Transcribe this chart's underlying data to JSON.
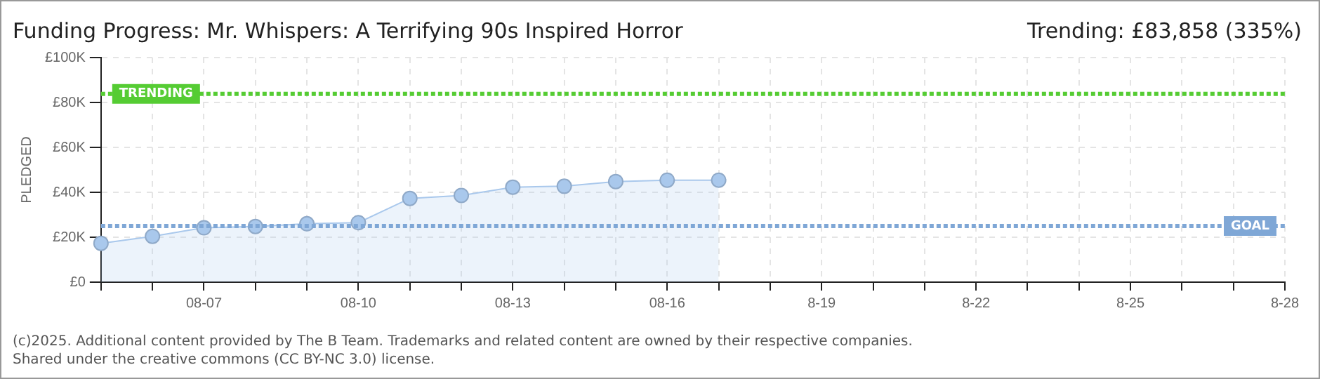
{
  "chart_data": {
    "type": "area",
    "title": "Funding Progress: Mr. Whispers: A Terrifying 90s Inspired Horror",
    "ylabel": "PLEDGED",
    "annotations": [
      "Trending: £83,858 (335%)",
      "(c)2025. Additional content provided by The B Team. Trademarks and related content are owned by their respective companies.",
      "Shared under the creative commons (CC BY-NC 3.0) license."
    ],
    "categories": [
      null,
      null,
      "08-07",
      null,
      null,
      "08-10",
      null,
      null,
      "08-13",
      null,
      null,
      "08-16",
      null,
      null,
      "8-19",
      null,
      null,
      "8-22",
      null,
      null,
      "8-25",
      null,
      null,
      "8-28"
    ],
    "series": [
      {
        "color": "#a9c8ec",
        "values": [
          17300,
          20400,
          24200,
          24800,
          26000,
          26500,
          37300,
          38600,
          42300,
          42700,
          44800,
          45400,
          45400,
          null,
          null,
          null,
          null,
          null,
          null,
          null,
          null,
          null,
          null,
          null
        ]
      }
    ],
    "ylim": [
      0,
      100000
    ],
    "yticks": [
      {
        "value": 0,
        "label": "£0"
      },
      {
        "value": 20000,
        "label": "£20K"
      },
      {
        "value": 40000,
        "label": "£40K"
      },
      {
        "value": 60000,
        "label": "£60K"
      },
      {
        "value": 80000,
        "label": "£80K"
      },
      {
        "value": 100000,
        "label": "£100K"
      }
    ],
    "ref_lines": [
      {
        "axis": "y",
        "value": 83858,
        "label": "TRENDING",
        "color": "#55cc33",
        "line_style": "dotted"
      },
      {
        "axis": "y",
        "value": 25000,
        "label": "GOAL",
        "color": "#7fa7d6",
        "line_style": "dotted"
      }
    ],
    "grid": true,
    "marker": "circle"
  }
}
